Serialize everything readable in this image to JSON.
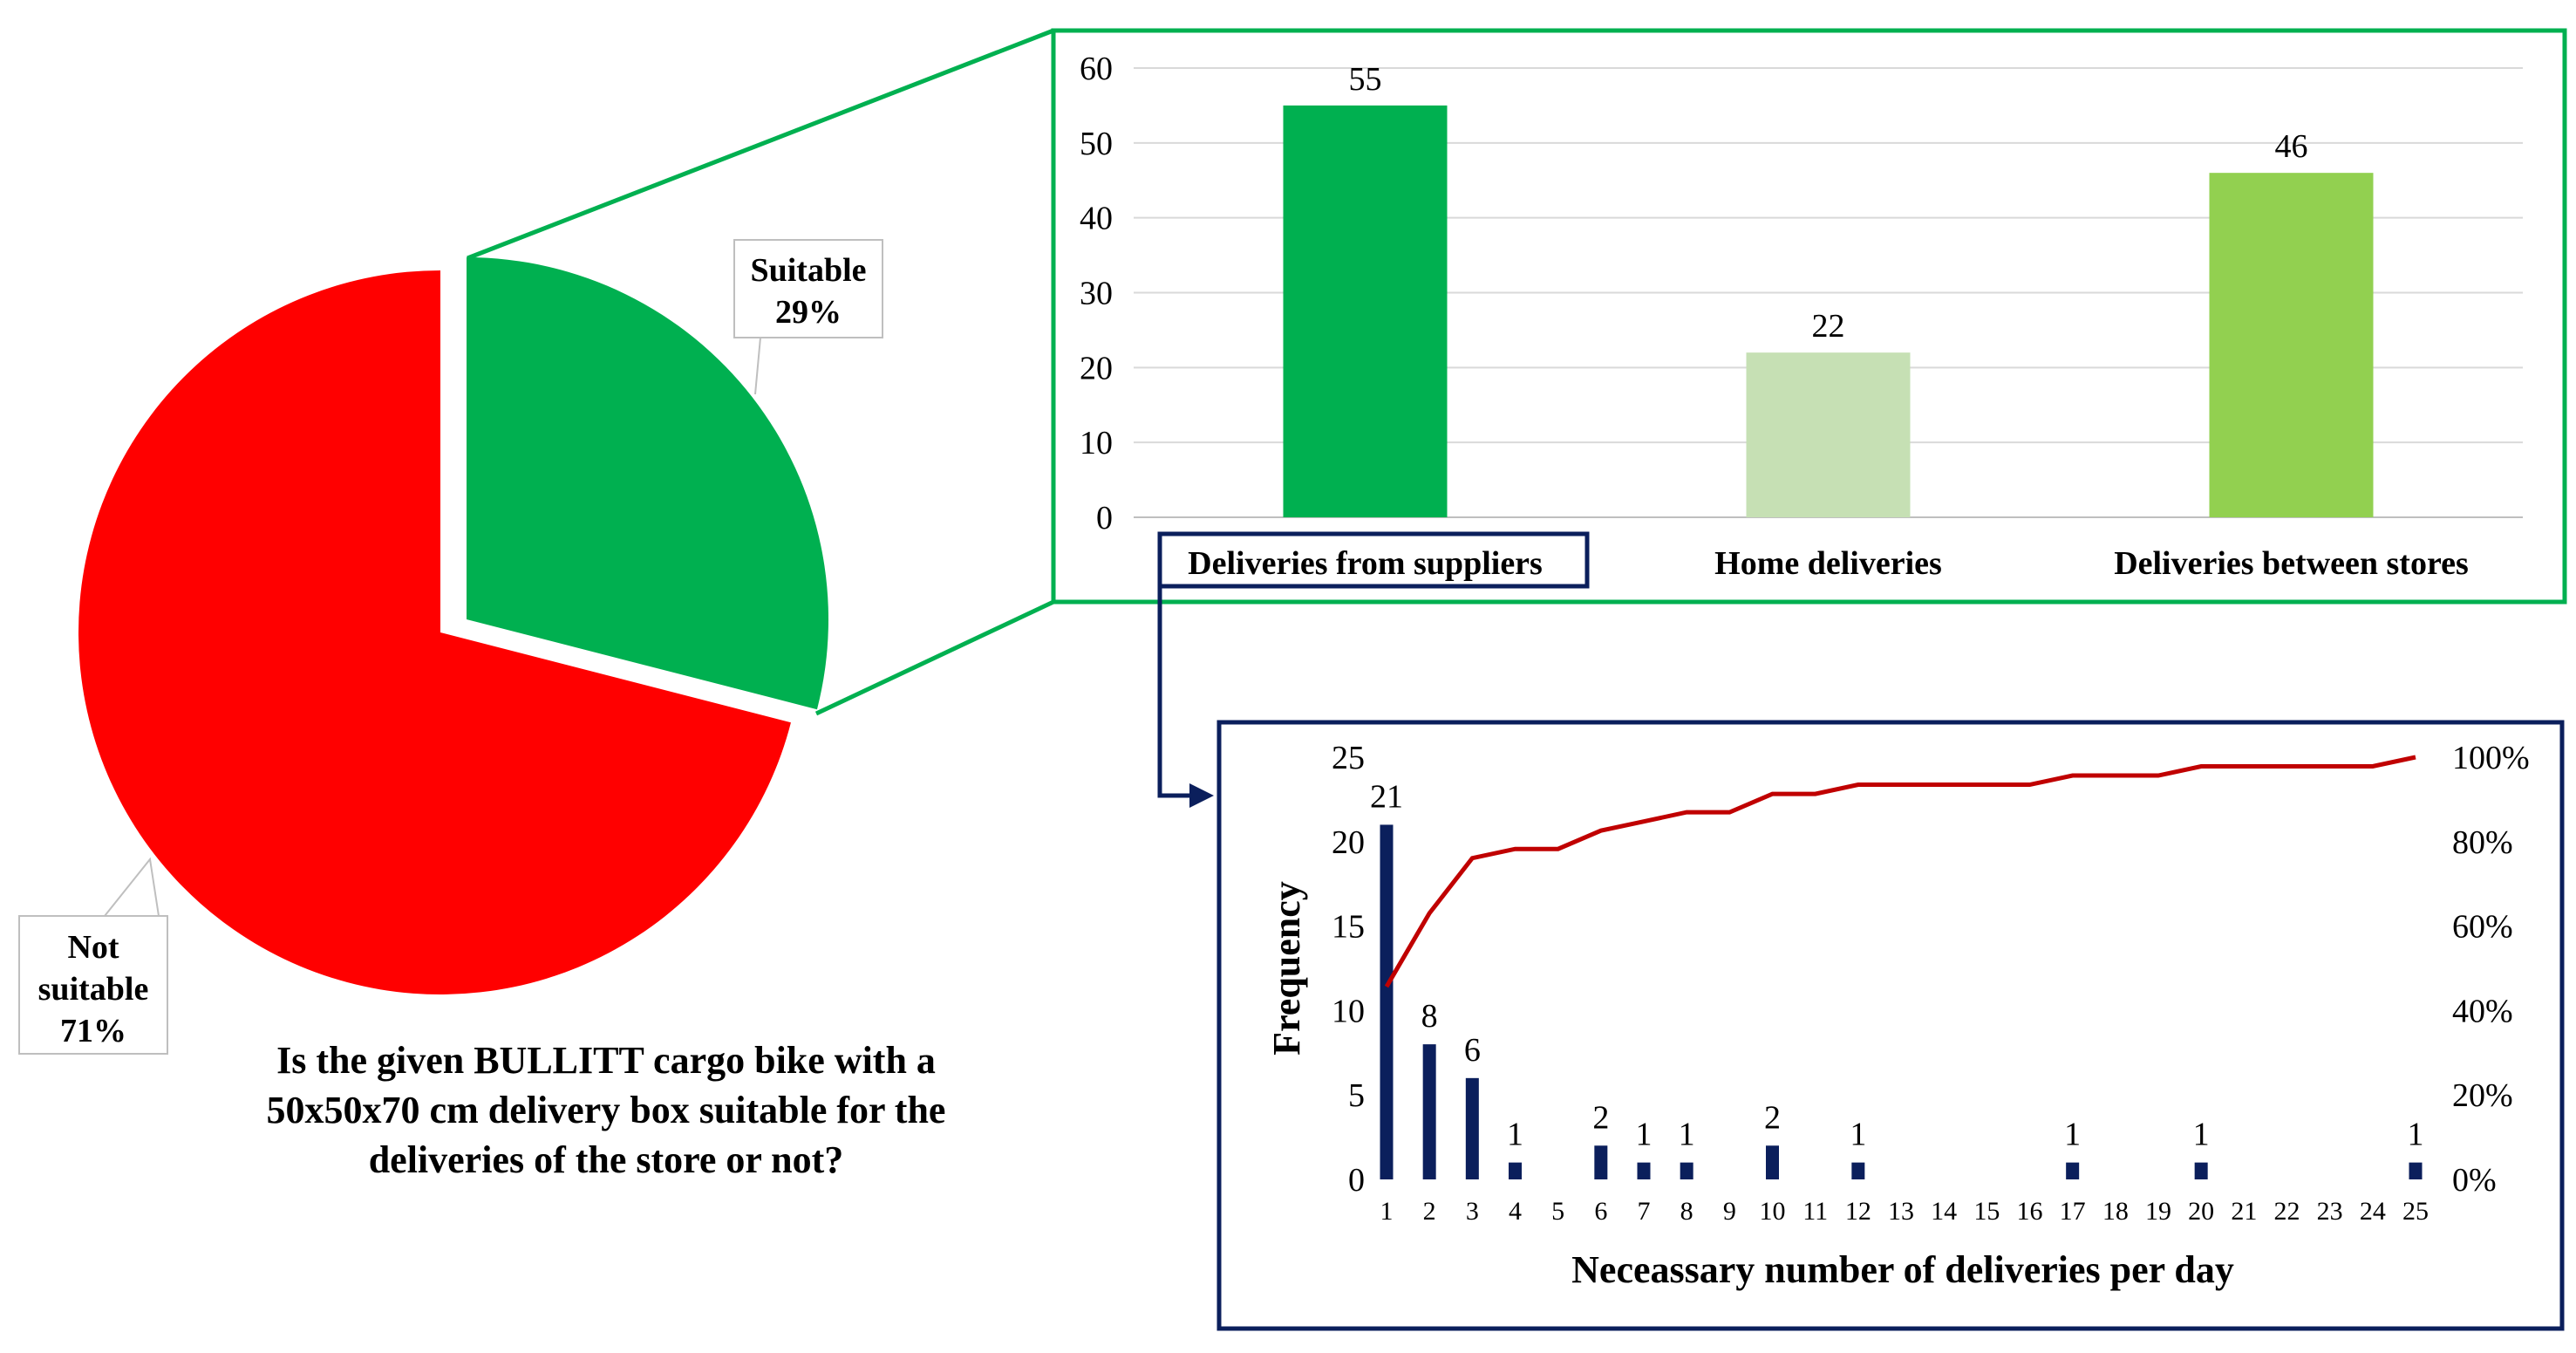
{
  "colors": {
    "not_suitable": "#ff0000",
    "suitable": "#00b050",
    "green_frame": "#00b050",
    "navy_frame": "#0b1f5c",
    "bar_suppliers": "#00b050",
    "bar_home": "#c6e0b4",
    "bar_stores": "#92d050",
    "freq_bar": "#0b1f5c",
    "cumulative_line": "#c00000"
  },
  "chart_data": [
    {
      "type": "pie",
      "title": "Is the given BULLITT cargo bike with a 50x50x70 cm delivery box suitable for the deliveries of the store or not?",
      "title_lines": [
        "Is the given BULLITT cargo bike with a",
        "50x50x70 cm delivery box suitable for the",
        "deliveries of the store or not?"
      ],
      "slices": [
        {
          "label": "Suitable",
          "value": 29,
          "value_label": "29%"
        },
        {
          "label": "Not suitable",
          "label_lines": [
            "Not",
            "suitable"
          ],
          "value": 71,
          "value_label": "71%"
        }
      ]
    },
    {
      "type": "bar",
      "categories": [
        "Deliveries from suppliers",
        "Home deliveries",
        "Deliveries between stores"
      ],
      "values": [
        55,
        22,
        46
      ],
      "ylim": [
        0,
        60
      ],
      "yticks": [
        0,
        10,
        20,
        30,
        40,
        50,
        60
      ],
      "grid": true,
      "highlighted_category": "Deliveries from suppliers"
    },
    {
      "type": "bar",
      "xlabel": "Neceassary number of deliveries per day",
      "ylabel": "Frequency",
      "x": [
        1,
        2,
        3,
        4,
        5,
        6,
        7,
        8,
        9,
        10,
        11,
        12,
        13,
        14,
        15,
        16,
        17,
        18,
        19,
        20,
        21,
        22,
        23,
        24,
        25
      ],
      "values": [
        21,
        8,
        6,
        1,
        0,
        2,
        1,
        1,
        0,
        2,
        0,
        1,
        0,
        0,
        0,
        0,
        1,
        0,
        0,
        1,
        0,
        0,
        0,
        0,
        1
      ],
      "data_labels": [
        "21",
        "8",
        "6",
        "1",
        "",
        "2",
        "1",
        "1",
        "",
        "2",
        "",
        "1",
        "",
        "",
        "",
        "",
        "1",
        "",
        "",
        "1",
        "",
        "",
        "",
        "",
        "1"
      ],
      "ylim": [
        0,
        25
      ],
      "yticks": [
        0,
        5,
        10,
        15,
        20,
        25
      ],
      "y2_ticks": [
        "0%",
        "20%",
        "40%",
        "60%",
        "80%",
        "100%"
      ],
      "cumulative_percent": [
        45.65,
        63.04,
        76.09,
        78.26,
        78.26,
        82.61,
        84.78,
        86.96,
        86.96,
        91.3,
        91.3,
        93.48,
        93.48,
        93.48,
        93.48,
        93.48,
        95.65,
        95.65,
        95.65,
        97.83,
        97.83,
        97.83,
        97.83,
        97.83,
        100
      ]
    }
  ]
}
